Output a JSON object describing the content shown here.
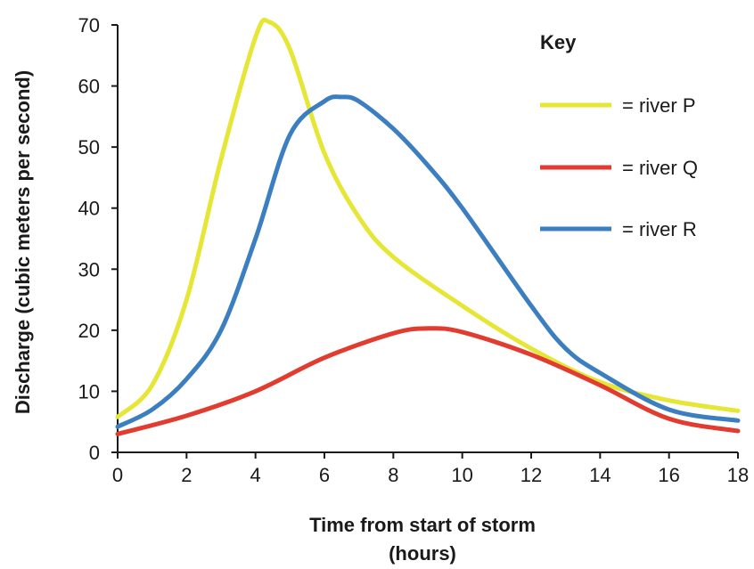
{
  "chart_data": {
    "type": "line",
    "xlabel": "Time from start of storm",
    "xlabel_unit": "(hours)",
    "ylabel": "Discharge (cubic meters per second)",
    "xlim": [
      0,
      18
    ],
    "ylim": [
      0,
      70
    ],
    "x_ticks": [
      0,
      2,
      4,
      6,
      8,
      10,
      12,
      14,
      16,
      18
    ],
    "y_ticks": [
      0,
      10,
      20,
      30,
      40,
      50,
      60,
      70
    ],
    "grid": false,
    "legend": {
      "title": "Key",
      "placement": "top-right",
      "entries": [
        "= river P",
        "= river Q",
        "= river R"
      ]
    },
    "series": [
      {
        "name": "river P",
        "color": "#e5e635",
        "x": [
          0,
          1,
          2,
          3,
          4,
          4.4,
          5,
          6,
          7,
          8,
          10,
          12,
          14,
          16,
          18
        ],
        "y": [
          5.8,
          11,
          25,
          48,
          68,
          70.5,
          66,
          49,
          38.5,
          32,
          24,
          17,
          11.5,
          8.5,
          6.8
        ]
      },
      {
        "name": "river Q",
        "color": "#e23b2f",
        "x": [
          0,
          2,
          4,
          6,
          8,
          9,
          10,
          12,
          14,
          16,
          18
        ],
        "y": [
          3,
          6,
          10,
          15.5,
          19.5,
          20.3,
          19.7,
          16,
          11,
          5.5,
          3.5
        ]
      },
      {
        "name": "river R",
        "color": "#3c7fc0",
        "x": [
          0,
          1,
          2,
          3,
          4,
          5,
          6,
          6.5,
          7,
          8,
          9,
          10,
          12,
          13,
          14,
          16,
          18
        ],
        "y": [
          4.2,
          7,
          12,
          20,
          35,
          52,
          57.5,
          58.2,
          57.5,
          53,
          47,
          40,
          24,
          17,
          13,
          7,
          5.2
        ]
      }
    ]
  }
}
